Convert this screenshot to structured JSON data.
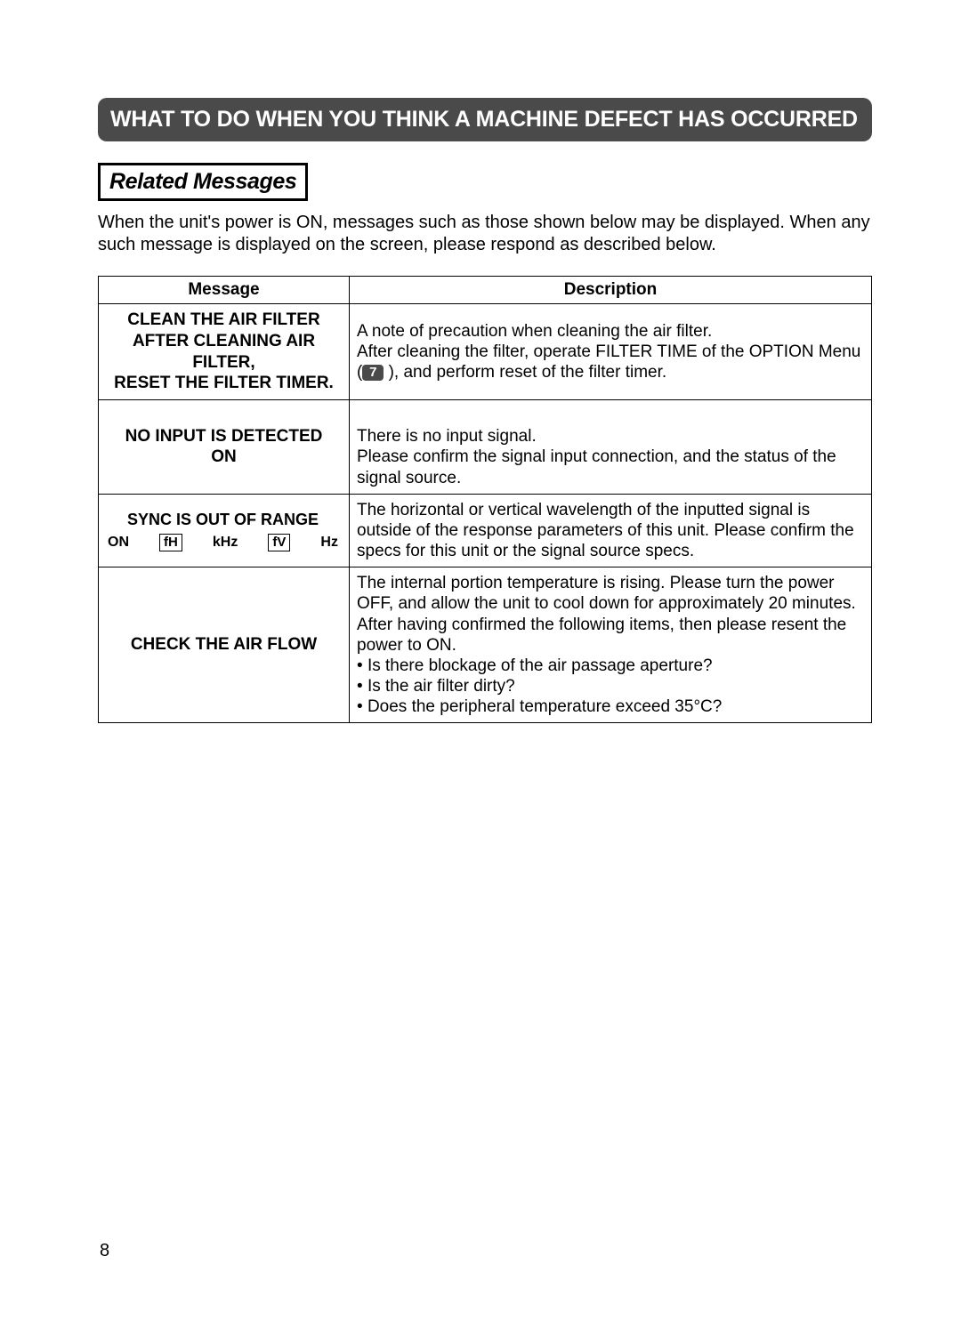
{
  "header": {
    "title": "WHAT TO DO WHEN YOU THINK A MACHINE DEFECT HAS OCCURRED"
  },
  "section": {
    "title": "Related Messages",
    "intro": "When the unit's power is ON, messages such as those shown below may be displayed. When any such message is displayed on the screen, please respond as described below."
  },
  "table": {
    "headers": {
      "message": "Message",
      "description": "Description"
    },
    "rows": [
      {
        "message_lines": [
          "CLEAN THE AIR FILTER",
          "AFTER CLEANING AIR FILTER,",
          "RESET THE FILTER TIMER."
        ],
        "desc_line1": "A note of precaution when cleaning the air filter.",
        "desc_line2_pre": "After cleaning the filter, operate FILTER TIME of the OPTION Menu (",
        "desc_menu_icon": "7",
        "desc_line2_post": " ), and perform reset of the filter timer."
      },
      {
        "message_lines": [
          "NO INPUT IS DETECTED",
          "ON"
        ],
        "desc": "There is no input signal.\nPlease confirm the signal input connection, and the status of the signal source."
      },
      {
        "sync_title": "SYNC IS OUT OF RANGE",
        "sync_on": "ON",
        "sync_fh": "fH",
        "sync_khz": "kHz",
        "sync_fv": "fV",
        "sync_hz": "Hz",
        "desc": "The horizontal or vertical wavelength of the inputted signal is outside of the response parameters of this unit. Please confirm the specs for this unit or the signal source specs."
      },
      {
        "message_lines": [
          "CHECK THE AIR FLOW"
        ],
        "desc_pre": "The internal portion temperature is rising. Please turn the power OFF, and allow the unit to cool down for approximately 20 minutes. After having confirmed the following items, then please resent the power to ON.",
        "bullets": [
          "Is there blockage of the air passage aperture?",
          "Is the air filter dirty?",
          "Does the peripheral temperature exceed 35°C?"
        ]
      }
    ]
  },
  "page_number": "8",
  "colors": {
    "header_bg": "#4a4a4a",
    "header_text": "#ffffff",
    "body_bg": "#ffffff",
    "border": "#000000",
    "text": "#000000"
  }
}
